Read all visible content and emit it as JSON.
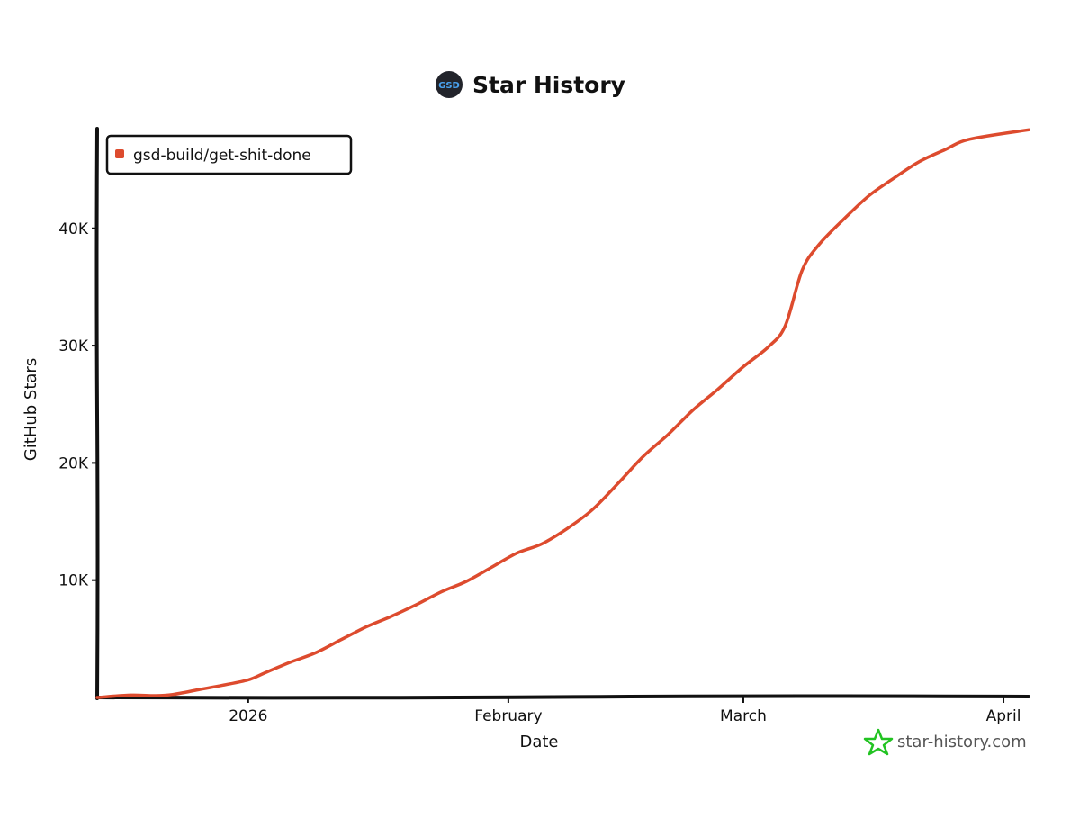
{
  "colors": {
    "series": "#dd4b2e",
    "axis": "#111111",
    "logo_bg": "#22242b",
    "logo_text": "#4aa3f0",
    "watermark_star": "#22c322",
    "watermark_text": "#555555"
  },
  "header": {
    "logo_text": "GSD",
    "logo_icon": "gsd-logo-icon"
  },
  "watermark": {
    "icon": "star-icon",
    "text": "star-history.com"
  },
  "chart_data": {
    "type": "line",
    "title": "Star History",
    "xlabel": "Date",
    "ylabel": "GitHub Stars",
    "x_ticks": [
      "2026",
      "February",
      "March",
      "April"
    ],
    "x_tick_dates": [
      "2026-01-01",
      "2026-02-01",
      "2026-03-01",
      "2026-04-01"
    ],
    "y_ticks": [
      {
        "value": 10000,
        "label": "10K"
      },
      {
        "value": 20000,
        "label": "20K"
      },
      {
        "value": 30000,
        "label": "30K"
      },
      {
        "value": 40000,
        "label": "40K"
      }
    ],
    "xlim": [
      "2025-12-14",
      "2026-04-04"
    ],
    "ylim": [
      0,
      48500
    ],
    "legend_position": "top-left",
    "grid": false,
    "series": [
      {
        "name": "gsd-build/get-shit-done",
        "points": [
          [
            "2025-12-14",
            0
          ],
          [
            "2025-12-18",
            200
          ],
          [
            "2025-12-21",
            150
          ],
          [
            "2025-12-23",
            250
          ],
          [
            "2025-12-26",
            650
          ],
          [
            "2025-12-29",
            1050
          ],
          [
            "2026-01-01",
            1500
          ],
          [
            "2026-01-03",
            2100
          ],
          [
            "2026-01-06",
            3000
          ],
          [
            "2026-01-09",
            3800
          ],
          [
            "2026-01-12",
            4900
          ],
          [
            "2026-01-15",
            6000
          ],
          [
            "2026-01-18",
            6900
          ],
          [
            "2026-01-21",
            7900
          ],
          [
            "2026-01-24",
            9000
          ],
          [
            "2026-01-27",
            9900
          ],
          [
            "2026-01-30",
            11100
          ],
          [
            "2026-02-02",
            12300
          ],
          [
            "2026-02-05",
            13100
          ],
          [
            "2026-02-08",
            14400
          ],
          [
            "2026-02-11",
            16000
          ],
          [
            "2026-02-14",
            18200
          ],
          [
            "2026-02-17",
            20500
          ],
          [
            "2026-02-20",
            22400
          ],
          [
            "2026-02-23",
            24500
          ],
          [
            "2026-02-26",
            26300
          ],
          [
            "2026-03-01",
            28200
          ],
          [
            "2026-03-04",
            29900
          ],
          [
            "2026-03-06",
            31700
          ],
          [
            "2026-03-08",
            36400
          ],
          [
            "2026-03-10",
            38600
          ],
          [
            "2026-03-13",
            40800
          ],
          [
            "2026-03-16",
            42800
          ],
          [
            "2026-03-19",
            44300
          ],
          [
            "2026-03-22",
            45700
          ],
          [
            "2026-03-25",
            46700
          ],
          [
            "2026-03-28",
            47600
          ],
          [
            "2026-04-04",
            48400
          ]
        ]
      }
    ]
  }
}
